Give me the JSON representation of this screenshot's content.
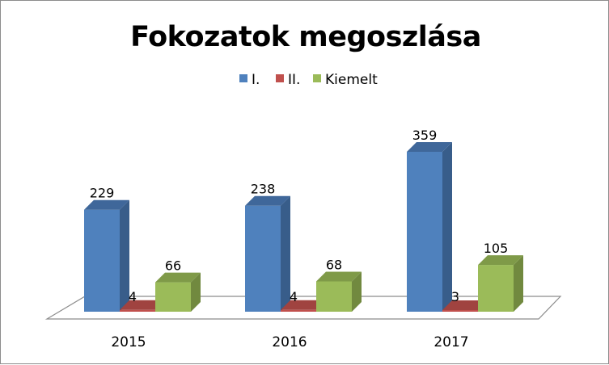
{
  "chart_data": {
    "type": "bar",
    "title": "Fokozatok megoszlása",
    "categories": [
      "2015",
      "2016",
      "2017"
    ],
    "series": [
      {
        "name": "I.",
        "values": [
          229,
          238,
          359
        ],
        "color": "#4f81bd",
        "side_color": "#385d8a",
        "top_color": "#3f679a"
      },
      {
        "name": "II.",
        "values": [
          4,
          4,
          3
        ],
        "color": "#c0504d",
        "side_color": "#8c3836",
        "top_color": "#a04340"
      },
      {
        "name": "Kiemelt",
        "values": [
          66,
          68,
          105
        ],
        "color": "#9bbb59",
        "side_color": "#71893f",
        "top_color": "#7f9a48"
      }
    ],
    "legend_position": "top",
    "grid": false,
    "ylim": [
      0,
      400
    ]
  }
}
